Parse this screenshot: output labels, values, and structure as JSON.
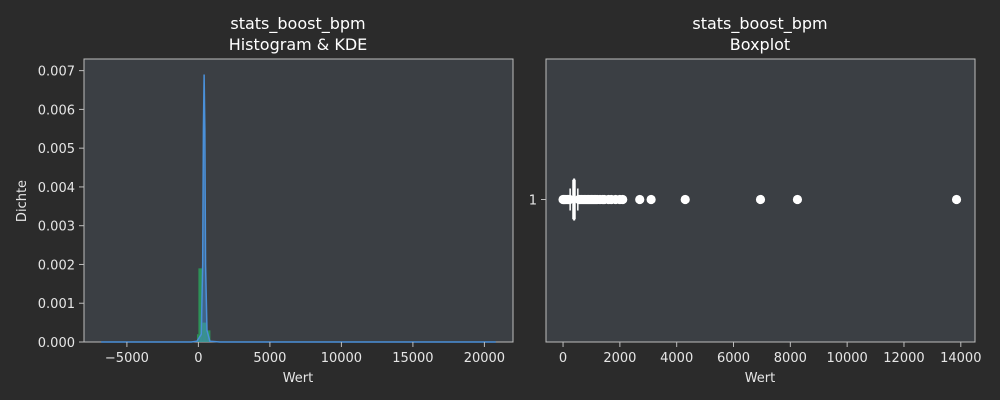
{
  "chart_data": [
    {
      "type": "histogram",
      "title": "stats_boost_bpm",
      "subtitle": "Histogram & KDE",
      "xlabel": "Wert",
      "ylabel": "Dichte",
      "xlim": [
        -8000,
        22000
      ],
      "ylim": [
        0,
        0.0073
      ],
      "xticks": [
        -5000,
        0,
        5000,
        10000,
        15000,
        20000
      ],
      "xtick_labels": [
        "−5000",
        "0",
        "5000",
        "10000",
        "15000",
        "20000"
      ],
      "yticks": [
        0,
        0.001,
        0.002,
        0.003,
        0.004,
        0.005,
        0.006,
        0.007
      ],
      "ytick_labels": [
        "0.000",
        "0.001",
        "0.002",
        "0.003",
        "0.004",
        "0.005",
        "0.006",
        "0.007"
      ],
      "bars": [
        {
          "x0": 0,
          "x1": 280,
          "value": 0.0019,
          "color": "#2ca05a"
        },
        {
          "x0": 280,
          "x1": 560,
          "value": 0.0005,
          "color": "#2ca05a"
        },
        {
          "x0": 560,
          "x1": 840,
          "value": 0.0003,
          "color": "#2ca05a"
        },
        {
          "x0": -100,
          "x1": 0,
          "value": 0.0002,
          "color": "#2ca05a"
        }
      ],
      "kde": {
        "color": "#4a90d9",
        "x": [
          -6800,
          -500,
          -100,
          200,
          300,
          350,
          400,
          450,
          500,
          600,
          800,
          1500,
          20800
        ],
        "y": [
          0,
          0,
          2e-05,
          0.0002,
          0.002,
          0.0055,
          0.0069,
          0.0055,
          0.002,
          0.0003,
          2e-05,
          0,
          0
        ]
      },
      "grid": false
    },
    {
      "type": "boxplot",
      "title": "stats_boost_bpm",
      "subtitle": "Boxplot",
      "xlabel": "Wert",
      "ylabel": "",
      "xlim": [
        -600,
        14500
      ],
      "xticks": [
        0,
        2000,
        4000,
        6000,
        8000,
        10000,
        12000,
        14000
      ],
      "xtick_labels": [
        "0",
        "2000",
        "4000",
        "6000",
        "8000",
        "10000",
        "12000",
        "14000"
      ],
      "yticks": [
        1
      ],
      "ytick_labels": [
        "1"
      ],
      "box": {
        "whisker_low": 250,
        "q1": 350,
        "median": 390,
        "q3": 420,
        "whisker_high": 520
      },
      "outliers": [
        0,
        30,
        60,
        100,
        150,
        200,
        230,
        560,
        600,
        650,
        700,
        750,
        800,
        850,
        900,
        950,
        1000,
        1050,
        1100,
        1150,
        1200,
        1300,
        1400,
        1450,
        1600,
        1700,
        1850,
        2000,
        2100,
        2700,
        3100,
        4300,
        6950,
        8250,
        13850
      ],
      "grid": false
    }
  ]
}
